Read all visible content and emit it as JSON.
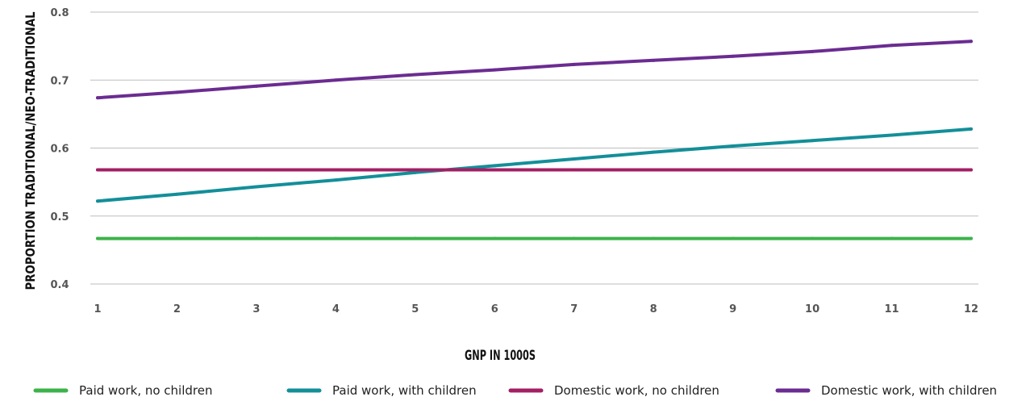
{
  "chart_data": {
    "type": "line",
    "xlabel": "GNP IN 1000S",
    "ylabel": "PROPORTION TRADITIONAL/NEO-TRADITIONAL",
    "x": [
      1,
      2,
      3,
      4,
      5,
      6,
      7,
      8,
      9,
      10,
      11,
      12
    ],
    "xticks": [
      "1",
      "2",
      "3",
      "4",
      "5",
      "6",
      "7",
      "8",
      "9",
      "10",
      "11",
      "12"
    ],
    "ylim": [
      0.4,
      0.8
    ],
    "yticks": [
      {
        "value": 0.4,
        "label": "0.4"
      },
      {
        "value": 0.5,
        "label": "0.5"
      },
      {
        "value": 0.6,
        "label": "0.6"
      },
      {
        "value": 0.7,
        "label": "0.7"
      },
      {
        "value": 0.8,
        "label": "0.8"
      }
    ],
    "grid": "horizontal",
    "legend_position": "bottom",
    "series": [
      {
        "name": "Paid work, no children",
        "color": "#3cb34a",
        "values": [
          0.467,
          0.467,
          0.467,
          0.467,
          0.467,
          0.467,
          0.467,
          0.467,
          0.467,
          0.467,
          0.467,
          0.467
        ]
      },
      {
        "name": "Paid work, with children",
        "color": "#138f99",
        "values": [
          0.522,
          0.532,
          0.543,
          0.553,
          0.564,
          0.574,
          0.584,
          0.594,
          0.603,
          0.611,
          0.619,
          0.628
        ]
      },
      {
        "name": "Domestic work, no children",
        "color": "#a31f63",
        "values": [
          0.568,
          0.568,
          0.568,
          0.568,
          0.568,
          0.568,
          0.568,
          0.568,
          0.568,
          0.568,
          0.568,
          0.568
        ]
      },
      {
        "name": "Domestic work, with children",
        "color": "#6b2c91",
        "values": [
          0.674,
          0.682,
          0.691,
          0.7,
          0.708,
          0.715,
          0.723,
          0.729,
          0.735,
          0.742,
          0.751,
          0.757
        ]
      }
    ]
  }
}
